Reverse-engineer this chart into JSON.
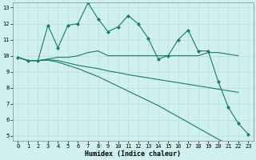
{
  "xlabel": "Humidex (Indice chaleur)",
  "bg_color": "#cff0ee",
  "grid_color": "#b8deda",
  "line_color": "#1a7a6e",
  "xlim": [
    -0.5,
    23.5
  ],
  "ylim": [
    4.7,
    13.3
  ],
  "yticks": [
    5,
    6,
    7,
    8,
    9,
    10,
    11,
    12,
    13
  ],
  "xticks": [
    0,
    1,
    2,
    3,
    4,
    5,
    6,
    7,
    8,
    9,
    10,
    11,
    12,
    13,
    14,
    15,
    16,
    17,
    18,
    19,
    20,
    21,
    22,
    23
  ],
  "line1_x": [
    0,
    1,
    2,
    3,
    4,
    5,
    6,
    7,
    8,
    9,
    10,
    11,
    12,
    13,
    14,
    15,
    16,
    17,
    18,
    19,
    20,
    21,
    22,
    23
  ],
  "line1_y": [
    9.9,
    9.7,
    9.7,
    11.9,
    10.5,
    11.9,
    12.0,
    13.3,
    12.3,
    11.5,
    11.8,
    12.5,
    12.0,
    11.1,
    9.8,
    10.0,
    11.0,
    11.6,
    10.3,
    10.3,
    8.4,
    6.8,
    5.8,
    5.1
  ],
  "line2_x": [
    0,
    1,
    2,
    3,
    4,
    5,
    6,
    7,
    8,
    9,
    10,
    11,
    12,
    13,
    14,
    15,
    16,
    17,
    18,
    19,
    20,
    21,
    22
  ],
  "line2_y": [
    9.9,
    9.7,
    9.7,
    9.8,
    9.9,
    9.9,
    10.0,
    10.2,
    10.3,
    10.0,
    10.0,
    10.0,
    10.0,
    10.0,
    10.0,
    10.0,
    10.0,
    10.0,
    10.0,
    10.2,
    10.2,
    10.1,
    10.0
  ],
  "line3_x": [
    0,
    1,
    2,
    3,
    4,
    5,
    6,
    7,
    8,
    9,
    10,
    11,
    12,
    13,
    14,
    15,
    16,
    17,
    18,
    19,
    20,
    21,
    22
  ],
  "line3_y": [
    9.9,
    9.7,
    9.7,
    9.75,
    9.7,
    9.55,
    9.4,
    9.3,
    9.2,
    9.05,
    8.95,
    8.82,
    8.72,
    8.62,
    8.52,
    8.42,
    8.32,
    8.22,
    8.12,
    8.02,
    7.92,
    7.82,
    7.72
  ],
  "line4_x": [
    0,
    1,
    2,
    3,
    4,
    5,
    6,
    7,
    8,
    9,
    10,
    11,
    12,
    13,
    14,
    15,
    16,
    17,
    18,
    19,
    20,
    21,
    22
  ],
  "line4_y": [
    9.9,
    9.7,
    9.7,
    9.72,
    9.6,
    9.4,
    9.2,
    8.95,
    8.7,
    8.4,
    8.1,
    7.8,
    7.5,
    7.2,
    6.9,
    6.55,
    6.2,
    5.85,
    5.5,
    5.15,
    4.8,
    4.5,
    4.2
  ]
}
